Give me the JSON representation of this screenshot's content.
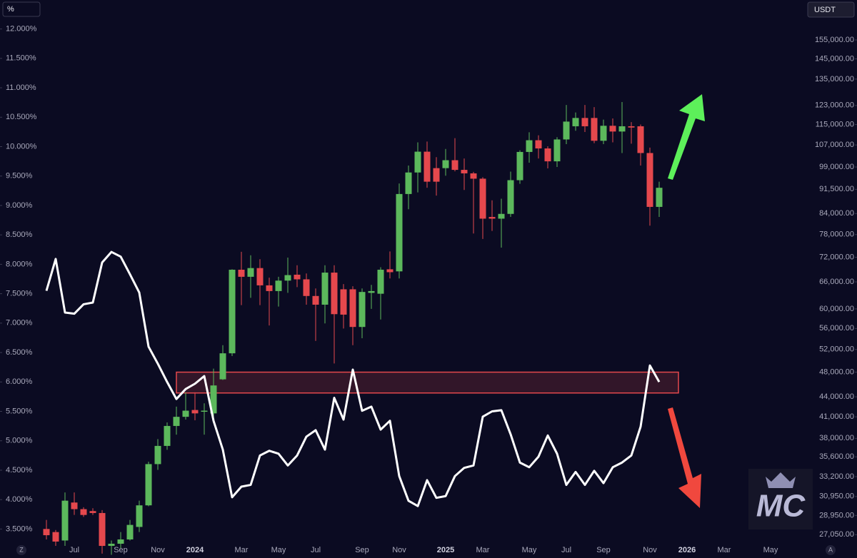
{
  "chart_data": {
    "type": "candlestick",
    "left_unit": "%",
    "right_unit": "USDT",
    "corner_left": "Z",
    "corner_right": "A",
    "logo": "MC",
    "background": "#0b0b22",
    "categories": [
      null,
      null,
      null,
      "Jul",
      null,
      null,
      null,
      null,
      "Sep",
      null,
      null,
      null,
      "Nov",
      null,
      null,
      null,
      "2024",
      null,
      null,
      null,
      null,
      "Mar",
      null,
      null,
      null,
      "May",
      null,
      null,
      null,
      "Jul",
      null,
      null,
      null,
      null,
      "Sep",
      null,
      null,
      null,
      "Nov",
      null,
      null,
      null,
      null,
      "2025",
      null,
      null,
      null,
      "Mar",
      null,
      null,
      null,
      null,
      "May",
      null,
      null,
      null,
      "Jul",
      null,
      null,
      null,
      "Sep",
      null,
      null,
      null,
      null,
      "Nov",
      null,
      null,
      null,
      "2026",
      null,
      null,
      null,
      "Mar",
      null,
      null,
      null,
      null,
      "May"
    ],
    "ylim": [
      3.25,
      12.25
    ],
    "yticks": [
      {
        "value": 3.5,
        "label": "3.500%"
      },
      {
        "value": 4,
        "label": "4.000%"
      },
      {
        "value": 4.5,
        "label": "4.500%"
      },
      {
        "value": 5,
        "label": "5.000%"
      },
      {
        "value": 5.5,
        "label": "5.500%"
      },
      {
        "value": 6,
        "label": "6.000%"
      },
      {
        "value": 6.5,
        "label": "6.500%"
      },
      {
        "value": 7,
        "label": "7.000%"
      },
      {
        "value": 7.5,
        "label": "7.500%"
      },
      {
        "value": 8,
        "label": "8.000%"
      },
      {
        "value": 8.5,
        "label": "8.500%"
      },
      {
        "value": 9,
        "label": "9.000%"
      },
      {
        "value": 9.5,
        "label": "9.500%"
      },
      {
        "value": 10,
        "label": "10.000%"
      },
      {
        "value": 10.5,
        "label": "10.500%"
      },
      {
        "value": 11,
        "label": "11.000%"
      },
      {
        "value": 11.5,
        "label": "11.500%"
      },
      {
        "value": 12,
        "label": "12.000%"
      }
    ],
    "y2lim": [
      26200,
      169700
    ],
    "y2scale": "log",
    "y2ticks": [
      {
        "value": 27050,
        "label": "27,050.00"
      },
      {
        "value": 28950,
        "label": "28,950.00"
      },
      {
        "value": 30950,
        "label": "30,950.00"
      },
      {
        "value": 33200,
        "label": "33,200.00"
      },
      {
        "value": 35600,
        "label": "35,600.00"
      },
      {
        "value": 38000,
        "label": "38,000.00"
      },
      {
        "value": 41000,
        "label": "41,000.00"
      },
      {
        "value": 44000,
        "label": "44,000.00"
      },
      {
        "value": 48000,
        "label": "48,000.00"
      },
      {
        "value": 52000,
        "label": "52,000.00"
      },
      {
        "value": 56000,
        "label": "56,000.00"
      },
      {
        "value": 60000,
        "label": "60,000.00"
      },
      {
        "value": 66000,
        "label": "66,000.00"
      },
      {
        "value": 72000,
        "label": "72,000.00"
      },
      {
        "value": 78000,
        "label": "78,000.00"
      },
      {
        "value": 84000,
        "label": "84,000.00"
      },
      {
        "value": 91500,
        "label": "91,500.00"
      },
      {
        "value": 99000,
        "label": "99,000.00"
      },
      {
        "value": 107000,
        "label": "107,000.00"
      },
      {
        "value": 115000,
        "label": "115,000.00"
      },
      {
        "value": 123000,
        "label": "123,000.00"
      },
      {
        "value": 135000,
        "label": "135,000.00"
      },
      {
        "value": 145000,
        "label": "145,000.00"
      },
      {
        "value": 155000,
        "label": "155,000.00"
      }
    ],
    "candles": {
      "axis": "y2",
      "color_up": "#5cb85c",
      "color_down": "#e5484d",
      "open": [
        27600,
        27300,
        26500,
        30300,
        29600,
        29400,
        29200,
        26000,
        26200,
        26600,
        27800,
        30000,
        34700,
        37000,
        39700,
        41000,
        42000,
        41800,
        41500,
        46800,
        51300,
        68900,
        67200,
        69300,
        65200,
        63900,
        66300,
        67700,
        66600,
        62800,
        60900,
        68200,
        64300,
        64300,
        56300,
        63500,
        63300,
        69000,
        68500,
        90000,
        97100,
        104500,
        98600,
        98600,
        101400,
        98000,
        96800,
        95000,
        83000,
        82500,
        83900,
        94500,
        104400,
        108800,
        105700,
        101000,
        109100,
        114300,
        117700,
        117700,
        108600,
        114500,
        112200,
        114300,
        114300,
        104000,
        86000,
        null,
        null,
        null,
        null,
        null,
        null,
        null,
        null,
        null,
        null,
        null,
        null
      ],
      "high": [
        28500,
        27500,
        31400,
        31400,
        29800,
        29700,
        29500,
        26500,
        27300,
        28500,
        30500,
        35000,
        37900,
        40200,
        42500,
        44700,
        44700,
        43000,
        48600,
        52800,
        69000,
        73400,
        72500,
        71500,
        67000,
        67200,
        71900,
        70000,
        68000,
        64500,
        70000,
        70000,
        65500,
        65000,
        64500,
        65300,
        69500,
        73500,
        93400,
        99500,
        108000,
        108300,
        102500,
        105500,
        109600,
        102000,
        97300,
        95500,
        88000,
        88500,
        97400,
        105000,
        111900,
        110700,
        106500,
        110000,
        123200,
        120000,
        123200,
        122300,
        117000,
        117500,
        124500,
        116000,
        115000,
        106000,
        94000,
        null,
        null,
        null,
        null,
        null,
        null,
        null,
        null,
        null,
        null,
        null,
        null
      ],
      "low": [
        26600,
        26000,
        26000,
        29000,
        28800,
        29000,
        25300,
        25200,
        25800,
        26500,
        27300,
        29900,
        34000,
        36500,
        38500,
        40600,
        40500,
        38500,
        41000,
        46700,
        50800,
        60800,
        62400,
        60800,
        56600,
        60500,
        63500,
        64800,
        60900,
        53600,
        57000,
        49500,
        56000,
        52800,
        54100,
        60000,
        57800,
        66800,
        66800,
        85300,
        90500,
        92000,
        89500,
        96000,
        97500,
        91300,
        78300,
        76800,
        79000,
        74500,
        83000,
        93300,
        100500,
        102000,
        98500,
        99000,
        107300,
        112500,
        112000,
        107700,
        107300,
        108000,
        104000,
        107500,
        99500,
        80500,
        83000,
        null,
        null,
        null,
        null,
        null,
        null,
        null,
        null,
        null,
        null,
        null,
        null
      ],
      "close": [
        27000,
        26400,
        30500,
        29600,
        29000,
        29200,
        26000,
        26200,
        26600,
        28000,
        30000,
        34700,
        37000,
        39700,
        41000,
        41900,
        41500,
        41900,
        45800,
        51300,
        68900,
        67200,
        69300,
        65200,
        63900,
        66300,
        67600,
        66600,
        62800,
        60900,
        68200,
        58900,
        58800,
        56300,
        63700,
        63900,
        68900,
        68300,
        90000,
        97100,
        104500,
        94000,
        94000,
        101400,
        98000,
        96800,
        95000,
        82500,
        82500,
        83900,
        94500,
        104400,
        108800,
        105700,
        101000,
        109100,
        116200,
        117700,
        114300,
        108600,
        114500,
        112200,
        114300,
        113800,
        104000,
        86000,
        92000,
        null,
        null,
        null,
        null,
        null,
        null,
        null,
        null,
        null,
        null,
        null,
        null
      ]
    },
    "line": {
      "color": "#ffffff",
      "values": [
        7.55,
        8.09,
        7.18,
        7.16,
        7.32,
        7.35,
        8.03,
        8.21,
        8.13,
        7.83,
        7.52,
        6.6,
        6.31,
        6.0,
        5.71,
        5.88,
        5.97,
        6.1,
        5.34,
        4.85,
        4.04,
        4.22,
        4.25,
        4.75,
        4.83,
        4.78,
        4.58,
        4.75,
        5.07,
        5.18,
        4.85,
        5.73,
        5.36,
        6.21,
        5.51,
        5.58,
        5.19,
        5.34,
        4.4,
        3.98,
        3.89,
        4.33,
        4.03,
        4.06,
        4.4,
        4.54,
        4.58,
        5.41,
        5.5,
        5.52,
        5.11,
        4.63,
        4.55,
        4.73,
        5.09,
        4.78,
        4.25,
        4.47,
        4.25,
        4.49,
        4.28,
        4.55,
        4.63,
        4.75,
        5.24,
        6.28,
        6.0,
        null,
        null,
        null,
        null,
        null,
        null,
        null,
        null,
        null,
        null,
        null,
        null
      ]
    },
    "zone": {
      "axis": "y2",
      "range": [
        44600,
        48000
      ],
      "color": "#e5484d"
    }
  }
}
